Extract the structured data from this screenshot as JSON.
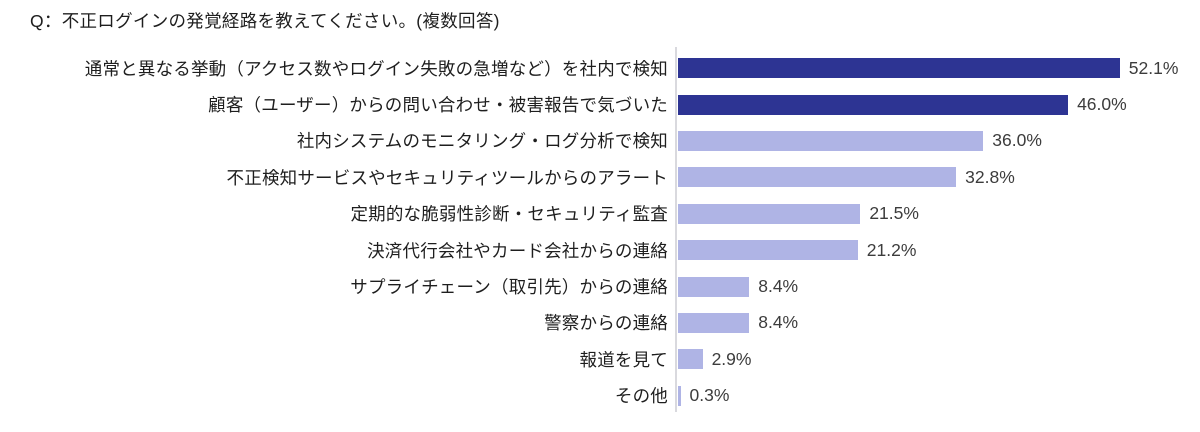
{
  "page": {
    "title": "Q：不正ログインの発覚経路を教えてください。(複数回答)"
  },
  "chart_data": {
    "type": "bar",
    "orientation": "horizontal",
    "title": "Q：不正ログインの発覚経路を教えてください。(複数回答)",
    "xlabel": "",
    "ylabel": "",
    "xlim": [
      0,
      61
    ],
    "grid": false,
    "legend": false,
    "value_suffix": "%",
    "categories": [
      "通常と異なる挙動（アクセス数やログイン失敗の急増など）を社内で検知",
      "顧客（ユーザー）からの問い合わせ・被害報告で気づいた",
      "社内システムのモニタリング・ログ分析で検知",
      "不正検知サービスやセキュリティツールからのアラート",
      "定期的な脆弱性診断・セキュリティ監査",
      "決済代行会社やカード会社からの連絡",
      "サプライチェーン（取引先）からの連絡",
      "警察からの連絡",
      "報道を見て",
      "その他"
    ],
    "values": [
      52.1,
      46.0,
      36.0,
      32.8,
      21.5,
      21.2,
      8.4,
      8.4,
      2.9,
      0.3
    ],
    "value_labels": [
      "52.1%",
      "46.0%",
      "36.0%",
      "32.8%",
      "21.5%",
      "21.2%",
      "8.4%",
      "8.4%",
      "2.9%",
      "0.3%"
    ],
    "bar_colors": [
      "#2D3493",
      "#2D3493",
      "#AFB4E5",
      "#AFB4E5",
      "#AFB4E5",
      "#AFB4E5",
      "#AFB4E5",
      "#AFB4E5",
      "#AFB4E5",
      "#AFB4E5"
    ],
    "colors": {
      "highlight_bar": "#2D3493",
      "base_bar": "#AFB4E5",
      "axis_line": "#D9D9DE",
      "category_text": "#1E1E1E",
      "value_text": "#3C3C3C"
    }
  }
}
